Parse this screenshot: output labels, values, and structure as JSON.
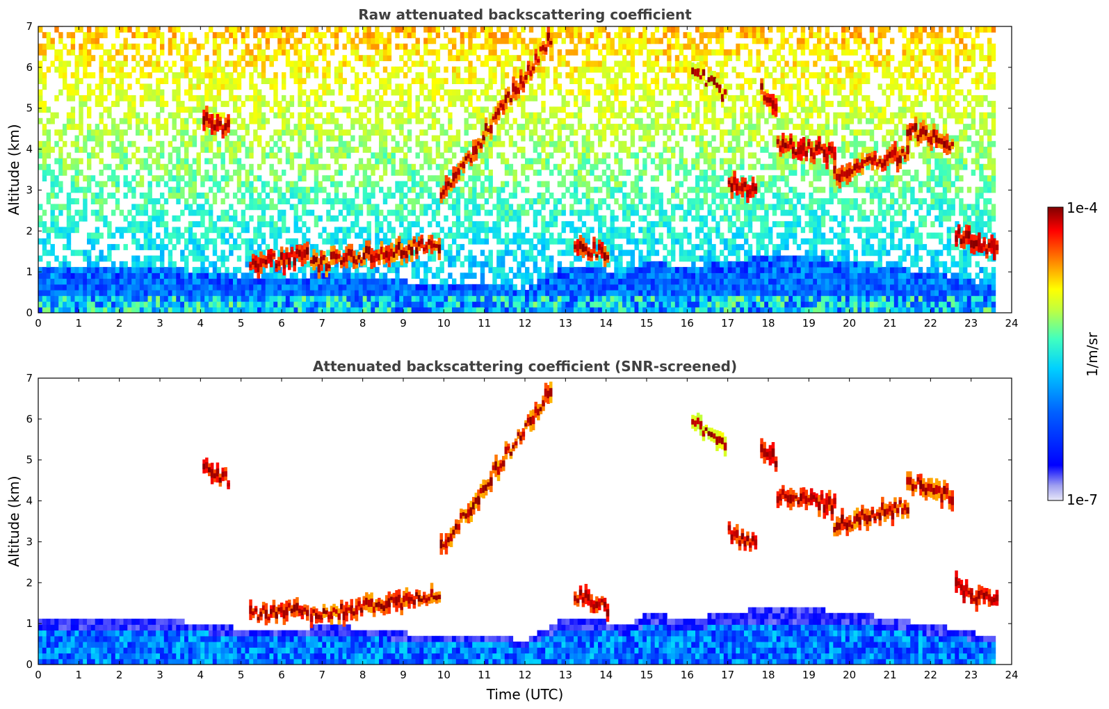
{
  "chart_data": [
    {
      "type": "heatmap",
      "title": "Raw attenuated backscattering coefficient",
      "xlabel": "",
      "ylabel": "Altitude (km)",
      "xlim": [
        0,
        24
      ],
      "ylim": [
        0,
        7
      ],
      "xticks": [
        "0",
        "1",
        "2",
        "3",
        "4",
        "5",
        "6",
        "7",
        "8",
        "9",
        "10",
        "11",
        "12",
        "13",
        "14",
        "15",
        "16",
        "17",
        "18",
        "19",
        "20",
        "21",
        "22",
        "23",
        "24"
      ],
      "yticks": [
        "0",
        "1",
        "2",
        "3",
        "4",
        "5",
        "6",
        "7"
      ],
      "data_end_hour": 23.6,
      "screened": false,
      "cloud_layers": [
        {
          "t": [
            4.05,
            4.65
          ],
          "z_start": 4.8,
          "z_end": 4.5,
          "level": 0.85
        },
        {
          "t": [
            5.2,
            6.6
          ],
          "z_start": 1.2,
          "z_end": 1.4,
          "level": 0.85
        },
        {
          "t": [
            6.7,
            9.85
          ],
          "z_start": 1.2,
          "z_end": 1.7,
          "level": 0.8
        },
        {
          "t": [
            9.9,
            12.6
          ],
          "z_start": 2.8,
          "z_end": 6.7,
          "level": 0.78
        },
        {
          "t": [
            13.2,
            14.0
          ],
          "z_start": 1.7,
          "z_end": 1.4,
          "level": 0.85
        },
        {
          "t": [
            16.1,
            16.9
          ],
          "z_start": 6.0,
          "z_end": 5.3,
          "level": 0.6
        },
        {
          "t": [
            17.0,
            17.65
          ],
          "z_start": 3.2,
          "z_end": 2.9,
          "level": 0.85
        },
        {
          "t": [
            17.8,
            18.15
          ],
          "z_start": 5.4,
          "z_end": 5.0,
          "level": 0.85
        },
        {
          "t": [
            18.2,
            19.6
          ],
          "z_start": 4.1,
          "z_end": 3.9,
          "level": 0.85
        },
        {
          "t": [
            19.6,
            21.4
          ],
          "z_start": 3.4,
          "z_end": 3.9,
          "level": 0.8
        },
        {
          "t": [
            21.4,
            22.5
          ],
          "z_start": 4.5,
          "z_end": 4.1,
          "level": 0.8
        },
        {
          "t": [
            22.6,
            23.6
          ],
          "z_start": 1.9,
          "z_end": 1.5,
          "level": 0.88
        }
      ]
    },
    {
      "type": "heatmap",
      "title": "Attenuated backscattering coefficient (SNR-screened)",
      "xlabel": "Time (UTC)",
      "ylabel": "Altitude (km)",
      "xlim": [
        0,
        24
      ],
      "ylim": [
        0,
        7
      ],
      "xticks": [
        "0",
        "1",
        "2",
        "3",
        "4",
        "5",
        "6",
        "7",
        "8",
        "9",
        "10",
        "11",
        "12",
        "13",
        "14",
        "15",
        "16",
        "17",
        "18",
        "19",
        "20",
        "21",
        "22",
        "23",
        "24"
      ],
      "yticks": [
        "0",
        "1",
        "2",
        "3",
        "4",
        "5",
        "6",
        "7"
      ],
      "data_end_hour": 23.6,
      "screened": true,
      "boundary_layer_top_km": [
        [
          0,
          1.05
        ],
        [
          2,
          1.1
        ],
        [
          4,
          0.95
        ],
        [
          5,
          0.8
        ],
        [
          6,
          0.75
        ],
        [
          7,
          0.9
        ],
        [
          10,
          0.6
        ],
        [
          12,
          0.55
        ],
        [
          13,
          1.1
        ],
        [
          14.5,
          0.9
        ],
        [
          15,
          1.2
        ],
        [
          16,
          1.0
        ],
        [
          17,
          1.25
        ],
        [
          19,
          1.3
        ],
        [
          20,
          1.2
        ],
        [
          22,
          0.9
        ],
        [
          23.6,
          0.6
        ]
      ]
    }
  ],
  "colorbar": {
    "label": "1/m/sr",
    "max_label": "1e-4",
    "min_label": "1e-7",
    "scale": "log",
    "range": [
      1e-07,
      0.0001
    ],
    "colormap": "jet",
    "colors": [
      "#e8e8f8",
      "#0000ff",
      "#00a0ff",
      "#00f0f0",
      "#80ff80",
      "#ffff00",
      "#ff8000",
      "#ff0000",
      "#800000"
    ]
  }
}
